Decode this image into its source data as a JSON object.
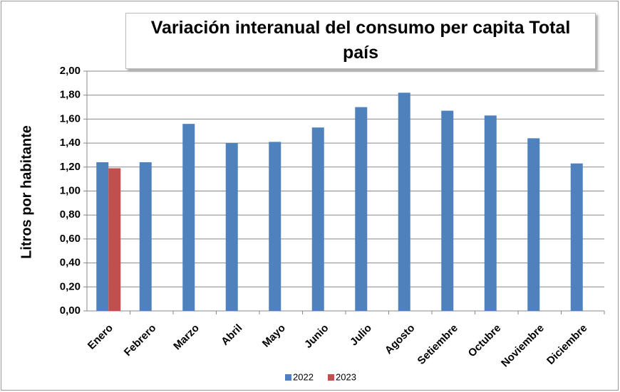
{
  "chart_data": {
    "type": "bar",
    "title": "Variación interanual del consumo per capita  Total país",
    "y_label": "Litros  por  habitante",
    "categories": [
      "Enero",
      "Febrero",
      "Marzo",
      "Abril",
      "Mayo",
      "Junio",
      "Julio",
      "Agosto",
      "Setiembre",
      "Octubre",
      "Noviembre",
      "Diciembre"
    ],
    "series": [
      {
        "name": "2022",
        "color": "#4f81bd",
        "values": [
          1.24,
          1.24,
          1.56,
          1.4,
          1.41,
          1.53,
          1.7,
          1.82,
          1.67,
          1.63,
          1.44,
          1.23
        ]
      },
      {
        "name": "2023",
        "color": "#c0504d",
        "values": [
          1.19,
          null,
          null,
          null,
          null,
          null,
          null,
          null,
          null,
          null,
          null,
          null
        ]
      }
    ],
    "ylim": [
      0,
      2
    ],
    "yticks": [
      {
        "value": 0,
        "label": "0,00"
      },
      {
        "value": 0.2,
        "label": "0,20"
      },
      {
        "value": 0.4,
        "label": "0,40"
      },
      {
        "value": 0.6,
        "label": "0,60"
      },
      {
        "value": 0.8,
        "label": "0,80"
      },
      {
        "value": 1,
        "label": "1,00"
      },
      {
        "value": 1.2,
        "label": "1,20"
      },
      {
        "value": 1.4,
        "label": "1,40"
      },
      {
        "value": 1.6,
        "label": "1,60"
      },
      {
        "value": 1.8,
        "label": "1,80"
      },
      {
        "value": 2,
        "label": "2,00"
      }
    ],
    "grid": true,
    "legend": "bottom"
  }
}
